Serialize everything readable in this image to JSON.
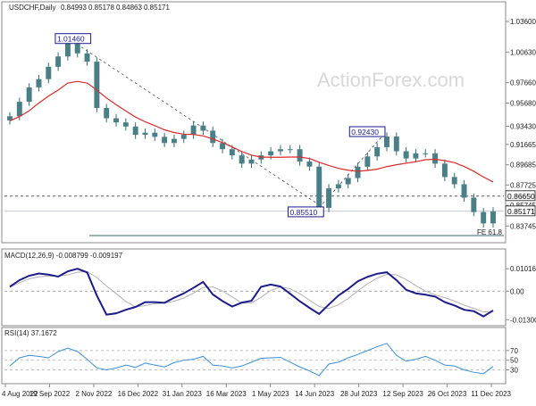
{
  "chart_data": {
    "type": "candlestick",
    "symbol_title": "USDCHF,Daily",
    "ohlc": [
      "0.84993",
      "0.85178",
      "0.84863",
      "0.85171"
    ],
    "watermark": "ActionForex.com",
    "price_axis": {
      "ticks": [
        "1.03600",
        "1.00630",
        "0.97660",
        "0.95680",
        "0.93430",
        "0.91665",
        "0.89685",
        "0.87725",
        "0.85745",
        "0.83745",
        "0.81780"
      ],
      "ylim": [
        0.8178,
        1.036
      ]
    },
    "x_axis": {
      "ticks": [
        "4 Aug 2022",
        "19 Sep 2022",
        "2 Nov 2022",
        "16 Dec 2022",
        "31 Jan 2023",
        "16 Mar 2023",
        "1 May 2023",
        "14 Jun 2023",
        "28 Jul 2023",
        "12 Sep 2023",
        "26 Oct 2023",
        "11 Dec 2023"
      ]
    },
    "price_series": {
      "name": "USDCHF",
      "values": [
        0.944,
        0.958,
        0.972,
        0.98,
        0.992,
        1.002,
        1.0146,
        1.005,
        0.997,
        0.952,
        0.942,
        0.938,
        0.934,
        0.926,
        0.928,
        0.924,
        0.918,
        0.922,
        0.926,
        0.935,
        0.93,
        0.918,
        0.912,
        0.906,
        0.898,
        0.902,
        0.906,
        0.91,
        0.912,
        0.912,
        0.9,
        0.8951,
        0.8551,
        0.874,
        0.878,
        0.884,
        0.895,
        0.905,
        0.914,
        0.9243,
        0.91,
        0.903,
        0.908,
        0.908,
        0.898,
        0.885,
        0.878,
        0.865,
        0.851,
        0.84,
        0.85171
      ]
    },
    "moving_average": {
      "values": [
        0.9395,
        0.9437,
        0.9493,
        0.9568,
        0.9635,
        0.9693,
        0.9762,
        0.9778,
        0.9762,
        0.9694,
        0.9617,
        0.9552,
        0.9491,
        0.9432,
        0.9386,
        0.9349,
        0.9308,
        0.9282,
        0.9265,
        0.9263,
        0.9249,
        0.9219,
        0.9184,
        0.9142,
        0.9097,
        0.9062,
        0.9044,
        0.9042,
        0.9042,
        0.9044,
        0.9044,
        0.9029,
        0.8994,
        0.8962,
        0.8934,
        0.8916,
        0.8906,
        0.8914,
        0.8926,
        0.8951,
        0.8969,
        0.8984,
        0.8999,
        0.9018,
        0.9022,
        0.9009,
        0.8989,
        0.8952,
        0.8906,
        0.885,
        0.8802
      ]
    },
    "annotations": {
      "peak_label": "1.01460",
      "trough_label": "0.85510",
      "swing_high_label": "0.92430",
      "hline_label": "0.86650",
      "last_price_label": "0.85171",
      "fe_label": "FE 61.8",
      "hline_value": 0.8665,
      "fe_value": 0.8178
    },
    "macd": {
      "title": "MACD(12,26,9) -0.008799 -0.009197",
      "ticks": [
        "0.010166",
        "0.00",
        "-0.013006"
      ],
      "ylim": [
        -0.0145,
        0.0135
      ],
      "macd_values": [
        0.002,
        0.005,
        0.007,
        0.008,
        0.0075,
        0.0066,
        0.009,
        0.0102,
        0.0085,
        -0.002,
        -0.0107,
        -0.0101,
        -0.0085,
        -0.0072,
        -0.005,
        -0.005,
        -0.0053,
        -0.003,
        -0.001,
        0.0015,
        0.0042,
        -0.0015,
        -0.0045,
        -0.007,
        -0.0052,
        -0.0044,
        0.002,
        0.003,
        0.0021,
        -0.0012,
        -0.0046,
        -0.0076,
        -0.0104,
        -0.0061,
        -0.002,
        0.001,
        0.0045,
        0.0065,
        0.0079,
        0.0086,
        0.005,
        0.0006,
        -0.001,
        -0.0016,
        -0.0025,
        -0.005,
        -0.0065,
        -0.0085,
        -0.0091,
        -0.0115,
        -0.0088
      ],
      "signal_values": [
        0.0017,
        0.0038,
        0.0056,
        0.0065,
        0.0069,
        0.0068,
        0.0074,
        0.0086,
        0.0089,
        0.0062,
        0.0023,
        -0.0011,
        -0.0047,
        -0.0072,
        -0.0066,
        -0.0057,
        -0.0054,
        -0.0046,
        -0.0031,
        -0.0009,
        0.0017,
        0.0019,
        0.0001,
        -0.0026,
        -0.0054,
        -0.0054,
        -0.0028,
        0.0003,
        0.0019,
        0.0011,
        -0.0012,
        -0.0041,
        -0.007,
        -0.0079,
        -0.0062,
        -0.0034,
        0.0001,
        0.0033,
        0.0059,
        0.0076,
        0.0074,
        0.0053,
        0.0025,
        0.0,
        -0.0017,
        -0.003,
        -0.0045,
        -0.0064,
        -0.0078,
        -0.0095,
        -0.0092
      ]
    },
    "rsi": {
      "title": "RSI(14) 37.1672",
      "ticks": [
        "70",
        "50",
        "30"
      ],
      "ylim": [
        5,
        92
      ],
      "values": [
        38,
        55,
        60,
        58,
        55,
        68,
        75,
        68,
        52,
        34,
        30,
        34,
        40,
        35,
        44,
        40,
        36,
        45,
        50,
        52,
        58,
        40,
        38,
        34,
        38,
        46,
        54,
        55,
        56,
        46,
        36,
        28,
        18,
        42,
        46,
        55,
        62,
        70,
        78,
        85,
        60,
        48,
        52,
        58,
        50,
        40,
        38,
        30,
        25,
        22,
        37
      ]
    }
  }
}
